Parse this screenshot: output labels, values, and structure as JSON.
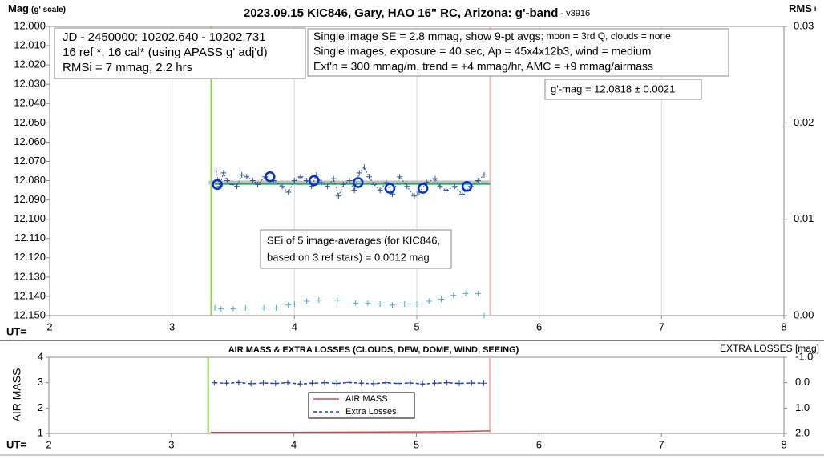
{
  "chart_data": [
    {
      "type": "scatter",
      "title": "2023.09.15 KIC846, Gary, HAO 16\" RC, Arizona: g'-band",
      "version": " - v3916",
      "ylabel": "Mag",
      "ylabel_note": "(g' scale)",
      "y2label": "RMS",
      "y2label_note": "i",
      "xlabel": "UT=",
      "xlim": [
        2,
        8
      ],
      "xticks": [
        2,
        3,
        4,
        5,
        6,
        7,
        8
      ],
      "ylim": [
        12.0,
        12.15
      ],
      "y_reversed": true,
      "yticks": [
        {
          "value": 12.0,
          "label": "12.000"
        },
        {
          "value": 12.01,
          "label": "12.010"
        },
        {
          "value": 12.02,
          "label": "12.020"
        },
        {
          "value": 12.03,
          "label": "12.030"
        },
        {
          "value": 12.04,
          "label": "12.040"
        },
        {
          "value": 12.05,
          "label": "12.050"
        },
        {
          "value": 12.06,
          "label": "12.060"
        },
        {
          "value": 12.07,
          "label": "12.070"
        },
        {
          "value": 12.08,
          "label": "12.080"
        },
        {
          "value": 12.09,
          "label": "12.090"
        },
        {
          "value": 12.1,
          "label": "12.100"
        },
        {
          "value": 12.11,
          "label": "12.110"
        },
        {
          "value": 12.12,
          "label": "12.120"
        },
        {
          "value": 12.13,
          "label": "12.130"
        },
        {
          "value": 12.14,
          "label": "12.140"
        },
        {
          "value": 12.15,
          "label": "12.150"
        }
      ],
      "y2lim": [
        0,
        0.03
      ],
      "y2ticks": [
        {
          "value": 0,
          "label": "0.00"
        },
        {
          "value": 0.01,
          "label": "0.01"
        },
        {
          "value": 0.02,
          "label": "0.02"
        },
        {
          "value": 0.03,
          "label": "0.03"
        }
      ],
      "x_grid": true,
      "vlines": [
        {
          "x": 3.32,
          "color": "#92d050"
        },
        {
          "x": 5.6,
          "color": "#f4b6b6"
        }
      ],
      "series": [
        {
          "color": "#bfbfbf",
          "line": "solid",
          "line_width": 5,
          "marker": "none",
          "x": [
            3.3,
            5.6
          ],
          "values": [
            12.081,
            12.081
          ]
        },
        {
          "color": "#00b050",
          "line": "solid",
          "line_width": 1.5,
          "marker": "none",
          "x": [
            3.35,
            5.6
          ],
          "values": [
            12.0818,
            12.0818
          ]
        },
        {
          "color": "#2f5597",
          "line": "dotted",
          "line_width": 1,
          "marker": "plus",
          "x": [
            3.36,
            3.39,
            3.42,
            3.45,
            3.49,
            3.53,
            3.57,
            3.61,
            3.66,
            3.7,
            3.76,
            3.83,
            3.9,
            3.95,
            4.0,
            4.05,
            4.1,
            4.14,
            4.18,
            4.22,
            4.27,
            4.32,
            4.36,
            4.4,
            4.45,
            4.49,
            4.53,
            4.57,
            4.61,
            4.65,
            4.7,
            4.75,
            4.8,
            4.86,
            4.92,
            4.98,
            5.02,
            5.08,
            5.15,
            5.19,
            5.24,
            5.31,
            5.37,
            5.44,
            5.5,
            5.55
          ],
          "values": [
            12.075,
            12.083,
            12.076,
            12.08,
            12.082,
            12.083,
            12.077,
            12.078,
            12.08,
            12.082,
            12.078,
            12.08,
            12.083,
            12.086,
            12.08,
            12.078,
            12.08,
            12.083,
            12.077,
            12.081,
            12.083,
            12.079,
            12.088,
            12.082,
            12.08,
            12.085,
            12.076,
            12.073,
            12.078,
            12.082,
            12.085,
            12.081,
            12.087,
            12.078,
            12.083,
            12.088,
            12.086,
            12.081,
            12.079,
            12.083,
            12.085,
            12.083,
            12.087,
            12.083,
            12.08,
            12.077
          ]
        },
        {
          "color": "#0033cc",
          "line": "none",
          "marker": "circle",
          "x": [
            3.37,
            3.8,
            4.16,
            4.52,
            4.78,
            5.05,
            5.41
          ],
          "values": [
            12.082,
            12.078,
            12.08,
            12.081,
            12.084,
            12.084,
            12.083
          ]
        },
        {
          "color": "#4bacc6",
          "line": "none",
          "marker": "plus",
          "axis": "y2",
          "x": [
            3.35,
            3.4,
            3.5,
            3.6,
            3.75,
            3.85,
            3.95,
            4.0,
            4.1,
            4.2,
            4.35,
            4.5,
            4.6,
            4.7,
            4.8,
            4.9,
            5.0,
            5.1,
            5.2,
            5.3,
            5.4,
            5.5,
            5.55
          ],
          "values": [
            0.0008,
            0.0007,
            0.0007,
            0.0008,
            0.0008,
            0.0008,
            0.0011,
            0.0012,
            0.0015,
            0.0016,
            0.0016,
            0.0013,
            0.0013,
            0.0012,
            0.0011,
            0.0012,
            0.0012,
            0.0015,
            0.0017,
            0.0021,
            0.0023,
            0.0023,
            0.0
          ]
        }
      ],
      "annotations": [
        {
          "lines": [
            "JD - 2450000: 10202.640 - 10202.731",
            "16 ref *, 16 cal* (using APASS g' adj'd)",
            "RMSi = 7 mmag, 2.2 hrs"
          ]
        },
        {
          "lines": [
            [
              "Single image SE = 2.8 mmag, show  9-pt avgs",
              "; moon = 3rd Q, clouds = none"
            ],
            "Single images, exposure = 40 sec, Ap = 45x4x12b3, wind = medium",
            "Ext'n = 300 mmag/m, trend = +4 mmag/hr, AMC = +9 mmag/airmass"
          ]
        },
        {
          "lines": [
            "g'-mag = 12.0818 ± 0.0021"
          ]
        },
        {
          "lines": [
            "SEi of 5 image-averages (for KIC846,",
            "based on 3 ref stars) = 0.0012 mag"
          ]
        }
      ]
    },
    {
      "type": "line",
      "title": "AIR MASS & EXTRA LOSSES (CLOUDS, DEW, DOME, WIND, SEEING)",
      "ylabel": "AIR MASS",
      "y2label": "EXTRA LOSSES [mag]",
      "xlabel": "UT=",
      "xlim": [
        2,
        8
      ],
      "xticks": [
        2,
        3,
        4,
        5,
        6,
        7,
        8
      ],
      "ylim": [
        1,
        4
      ],
      "yticks": [
        1,
        2,
        3,
        4
      ],
      "y2lim": [
        -1.0,
        2.0
      ],
      "y2_reversed": true,
      "y2ticks": [
        {
          "value": -1.0,
          "label": "-1.0"
        },
        {
          "value": 0,
          "label": "0.0"
        },
        {
          "value": 1.0,
          "label": "1.0"
        },
        {
          "value": 2.0,
          "label": "2.0"
        }
      ],
      "x_grid": false,
      "vlines": [
        {
          "x": 3.3,
          "color": "#92d050"
        },
        {
          "x": 5.6,
          "color": "#f4b6b6"
        }
      ],
      "legend": "center",
      "series": [
        {
          "name": "AIR MASS",
          "color": "#c0504d",
          "line": "solid",
          "line_width": 1.5,
          "marker": "none",
          "x": [
            3.32,
            4.0,
            4.5,
            5.0,
            5.3,
            5.6
          ],
          "values": [
            1.04,
            1.04,
            1.05,
            1.06,
            1.07,
            1.1
          ]
        },
        {
          "name": "Extra Losses",
          "color": "#1f3ea6",
          "line": "dashed",
          "line_width": 1.5,
          "marker": "plus",
          "axis": "y2",
          "x": [
            3.35,
            3.45,
            3.55,
            3.65,
            3.75,
            3.85,
            3.95,
            4.05,
            4.15,
            4.25,
            4.35,
            4.45,
            4.55,
            4.65,
            4.75,
            4.85,
            4.95,
            5.05,
            5.15,
            5.25,
            5.35,
            5.45,
            5.55
          ],
          "values": [
            0.0,
            0.02,
            -0.01,
            0.04,
            0.01,
            0.03,
            0.0,
            0.05,
            0.02,
            0.0,
            0.03,
            -0.01,
            0.02,
            0.04,
            0.0,
            0.03,
            0.01,
            0.05,
            0.02,
            0.0,
            0.03,
            0.01,
            0.02
          ]
        }
      ]
    }
  ]
}
